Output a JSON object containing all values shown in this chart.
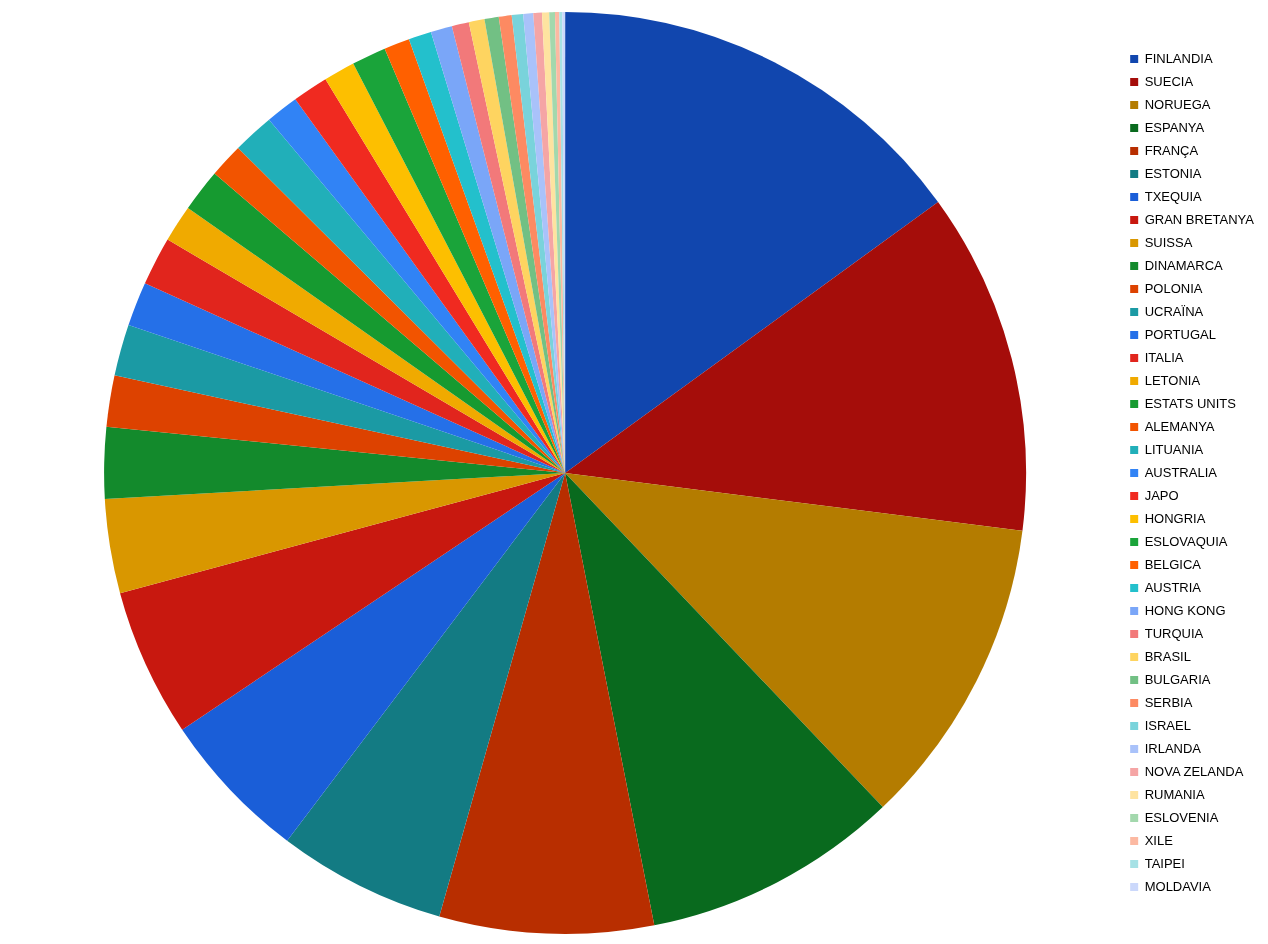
{
  "chart_data": {
    "type": "pie",
    "legend": "right",
    "categories": [
      "FINLANDIA",
      "SUECIA",
      "NORUEGA",
      "ESPANYA",
      "FRANÇA",
      "ESTONIA",
      "TXEQUIA",
      "GRAN BRETANYA",
      "SUISSA",
      "DINAMARCA",
      "POLONIA",
      "UCRAÏNA",
      "PORTUGAL",
      "ITALIA",
      "LETONIA",
      "ESTATS UNITS",
      "ALEMANYA",
      "LITUANIA",
      "AUSTRALIA",
      "JAPO",
      "HONGRIA",
      "ESLOVAQUIA",
      "BELGICA",
      "AUSTRIA",
      "HONG KONG",
      "TURQUIA",
      "BRASIL",
      "BULGARIA",
      "SERBIA",
      "ISRAEL",
      "IRLANDA",
      "NOVA ZELANDA",
      "RUMANIA",
      "ESLOVENIA",
      "XILE",
      "TAIPEI",
      "MOLDAVIA"
    ],
    "values": [
      15,
      12,
      10.9,
      9,
      7.5,
      5.9,
      5.3,
      5.2,
      3.3,
      2.5,
      1.8,
      1.8,
      1.55,
      1.7,
      1.3,
      1.5,
      1.2,
      1.45,
      1.15,
      1.25,
      1.1,
      1.2,
      0.9,
      0.8,
      0.75,
      0.6,
      0.55,
      0.5,
      0.45,
      0.4,
      0.35,
      0.3,
      0.25,
      0.2,
      0.15,
      0.1,
      0.1
    ],
    "colors": [
      "#1146ae",
      "#a50d0a",
      "#b47c00",
      "#096a1e",
      "#b82e00",
      "#137b83",
      "#1a5ed8",
      "#c8180f",
      "#d99700",
      "#138a2c",
      "#dd4200",
      "#1b9aa4",
      "#2570e8",
      "#e1251d",
      "#f0aa00",
      "#169a30",
      "#f25400",
      "#21afb9",
      "#3183f5",
      "#f02a20",
      "#fdbf00",
      "#1aa43a",
      "#ff6000",
      "#23c0cc",
      "#7aa6f8",
      "#f2797a",
      "#fed460",
      "#72c084",
      "#fd8a62",
      "#79d3db",
      "#a9c2fa",
      "#f5a5a5",
      "#fee3a0",
      "#a3d8ad",
      "#fcb9a2",
      "#a6e1e5",
      "#cbd8fb"
    ]
  }
}
